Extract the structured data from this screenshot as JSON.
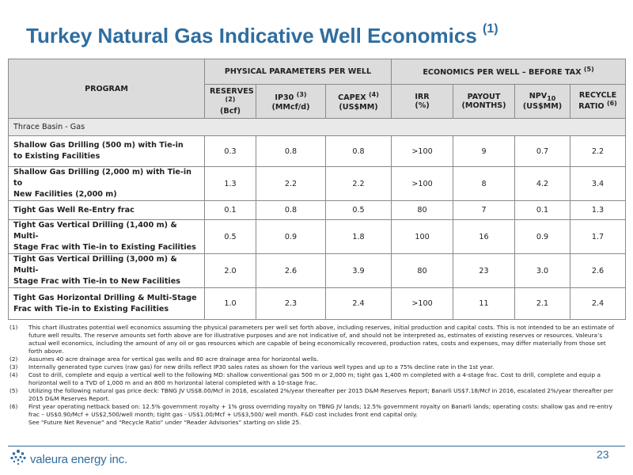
{
  "title": "Turkey Natural Gas Indicative Well Economics",
  "title_sup": "(1)",
  "table": {
    "program_header": "PROGRAM",
    "group_physical": "PHYSICAL PARAMETERS PER WELL",
    "group_economics": "ECONOMICS PER WELL – BEFORE TAX",
    "group_economics_sup": "(5)",
    "col_reserves": "RESERVES",
    "col_reserves_sup": "(2)",
    "col_reserves_unit": "(Bcf)",
    "col_ip30": "IP30",
    "col_ip30_sup": "(3)",
    "col_ip30_unit": "(MMcf/d)",
    "col_capex": "CAPEX",
    "col_capex_sup": "(4)",
    "col_capex_unit": "(US$MM)",
    "col_irr": "IRR",
    "col_irr_unit": "(%)",
    "col_payout": "PAYOUT",
    "col_payout_unit": "(MONTHS)",
    "col_npv": "NPV",
    "col_npv_sub": "10",
    "col_npv_unit": "(US$MM)",
    "col_recycle": "RECYCLE",
    "col_recycle_unit": "RATIO",
    "col_recycle_sup": "(6)",
    "section": "Thrace Basin - Gas",
    "rows": [
      {
        "program_l1": "Shallow Gas Drilling (500 m) with Tie-in",
        "program_l2": "to Existing Facilities",
        "reserves": "0.3",
        "ip30": "0.8",
        "capex": "0.8",
        "irr": ">100",
        "payout": "9",
        "npv": "0.7",
        "recycle": "2.2"
      },
      {
        "program_l1": "Shallow Gas Drilling (2,000 m) with Tie-in to",
        "program_l2": "New Facilities  (2,000 m)",
        "reserves": "1.3",
        "ip30": "2.2",
        "capex": "2.2",
        "irr": ">100",
        "payout": "8",
        "npv": "4.2",
        "recycle": "3.4"
      },
      {
        "program_l1": "Tight Gas Well Re-Entry frac",
        "program_l2": "",
        "reserves": "0.1",
        "ip30": "0.8",
        "capex": "0.5",
        "irr": "80",
        "payout": "7",
        "npv": "0.1",
        "recycle": "1.3"
      },
      {
        "program_l1": "Tight Gas Vertical Drilling (1,400 m) & Multi-",
        "program_l2": "Stage  Frac with Tie-in to Existing Facilities",
        "reserves": "0.5",
        "ip30": "0.9",
        "capex": "1.8",
        "irr": "100",
        "payout": "16",
        "npv": "0.9",
        "recycle": "1.7"
      },
      {
        "program_l1": "Tight Gas Vertical Drilling (3,000 m) & Multi-",
        "program_l2": "Stage  Frac with Tie-in to New Facilities",
        "reserves": "2.0",
        "ip30": "2.6",
        "capex": "3.9",
        "irr": "80",
        "payout": "23",
        "npv": "3.0",
        "recycle": "2.6"
      },
      {
        "program_l1": "Tight Gas Horizontal Drilling & Multi-Stage",
        "program_l2": "Frac with Tie-in to Existing Facilities",
        "reserves": "1.0",
        "ip30": "2.3",
        "capex": "2.4",
        "irr": ">100",
        "payout": "11",
        "npv": "2.1",
        "recycle": "2.4"
      }
    ]
  },
  "notes": [
    {
      "no": "(1)",
      "text": "This chart illustrates potential well economics assuming the physical parameters per well set forth above, including reserves, initial production and capital costs.  This is not intended to be an estimate of future well results. The reserve amounts set forth above are for illustrative purposes and are not indicative of, and should not be interpreted as, estimates of existing reserves or resources.  Valeura’s actual well economics, including the amount of any oil or gas resources which are capable of being economically recovered, production rates, costs and expenses, may differ materially from those set forth above."
    },
    {
      "no": "(2)",
      "text": "Assumes 40 acre drainage area for vertical gas wells and 80 acre drainage area for horizontal wells."
    },
    {
      "no": "(3)",
      "text": "Internally generated type curves (raw gas) for new drills reflect IP30 sales rates as shown for the various well types and up to a 75% decline rate in the 1st year."
    },
    {
      "no": "(4)",
      "text": "Cost to drill, complete and equip a vertical well to the following MD: shallow conventional gas 500 m or 2,000 m;  tight gas  1,400 m completed with a 4-stage frac. Cost to drill, complete and equip a horizontal well to a TVD of 1,000 m and an 800 m horizontal lateral completed with a 10-stage frac."
    },
    {
      "no": "(5)",
      "text": "Utilizing the following natural gas price deck: TBNG JV US$8.00/Mcf in 2016, escalated 2%/year thereafter per 2015 D&M Reserves Report; Banarli US$7.18/Mcf in 2016, escalated 2%/year thereafter per 2015 D&M Reserves Report."
    },
    {
      "no": "(6)",
      "text": "First year operating netback based on: 12.5% government royalty + 1% gross overriding royalty on TBNG JV lands; 12.5% government royalty on Banarli lands; operating costs: shallow gas and re-entry frac – US$0.90/Mcf + US$2,500/well month;  tight gas - US$1.00/Mcf + US$3,500/ well month. F&D cost includes front end capital only."
    }
  ],
  "notes_last": "See “Future Net Revenue” and “Recycle Ratio” under “Reader Advisories” starting on slide 25.",
  "logo_text": "valeura energy inc.",
  "page_number": "23",
  "colors": {
    "title": "#2f6d9f",
    "header_bg": "#dcdcdc",
    "section_bg": "#e9e9e9",
    "border": "#8a8a8a"
  }
}
